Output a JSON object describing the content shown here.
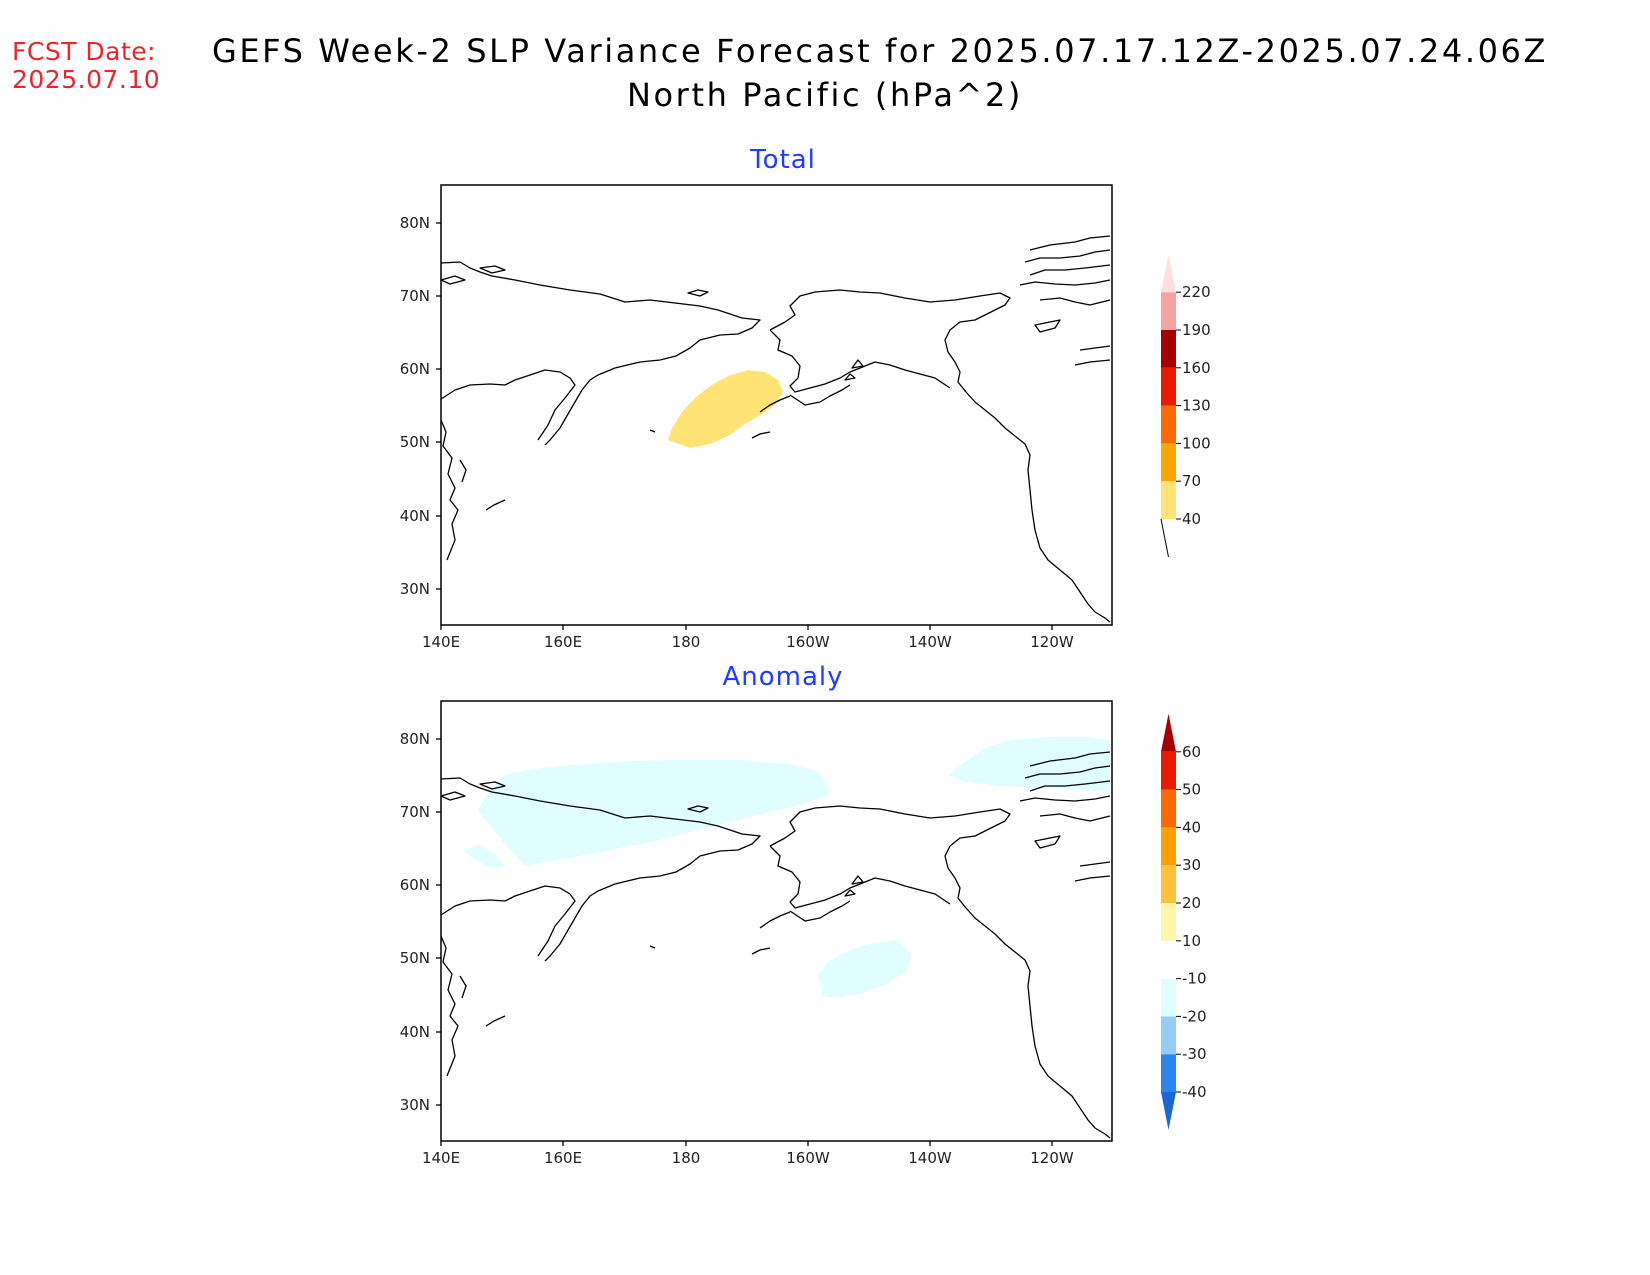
{
  "header": {
    "fcst_label": "FCST Date:",
    "fcst_date": "2025.07.10",
    "title_line1": "GEFS Week-2 SLP Variance Forecast for 2025.07.17.12Z-2025.07.24.06Z",
    "title_line2": "North Pacific (hPa^2)"
  },
  "axes": {
    "lat_ticks": [
      "80N",
      "70N",
      "60N",
      "50N",
      "40N",
      "30N"
    ],
    "lon_ticks": [
      "140E",
      "160E",
      "180",
      "160W",
      "140W",
      "120W"
    ]
  },
  "chart_data": [
    {
      "type": "map",
      "panel_title": "Total",
      "region": "North Pacific",
      "lon_range": [
        "140E",
        "110W"
      ],
      "lat_range": [
        "25N",
        "85N"
      ],
      "colorbar": {
        "levels": [
          "40",
          "70",
          "100",
          "130",
          "160",
          "190",
          "220"
        ],
        "colors": [
          "#ffe475",
          "#ffa500",
          "#ff6a00",
          "#e81a00",
          "#a80000",
          "#f4a3a3",
          "#ffe0e0"
        ],
        "extend": "both"
      },
      "shaded_regions": [
        {
          "level": "40-70",
          "color": "#ffe475",
          "area": "western Bering Sea / Aleutians, approx 175E-165W, 50N-60N"
        }
      ]
    },
    {
      "type": "map",
      "panel_title": "Anomaly",
      "region": "North Pacific",
      "lon_range": [
        "140E",
        "110W"
      ],
      "lat_range": [
        "25N",
        "85N"
      ],
      "colorbar": {
        "levels": [
          "-40",
          "-30",
          "-20",
          "-10",
          "10",
          "20",
          "30",
          "40",
          "50",
          "60"
        ],
        "colors": [
          "#1a66d6",
          "#2b86f0",
          "#94ccf6",
          "#e0fdff",
          "#ffffff",
          "#fff7a8",
          "#ffc13a",
          "#ffa000",
          "#ff6a00",
          "#e81a00",
          "#a80000"
        ],
        "extend": "both"
      },
      "shaded_regions": [
        {
          "level": "-20 to -10",
          "color": "#e0fdff",
          "area": "northeast Siberia / Chukchi coast, approx 145E-165W, 65N-76N"
        },
        {
          "level": "-20 to -10",
          "color": "#e0fdff",
          "area": "Canadian Arctic, approx 130W-110W, 74N-80N"
        },
        {
          "level": "-20 to -10",
          "color": "#e0fdff",
          "area": "Gulf of Alaska, approx 160W-143W, 46N-53N"
        }
      ]
    }
  ]
}
